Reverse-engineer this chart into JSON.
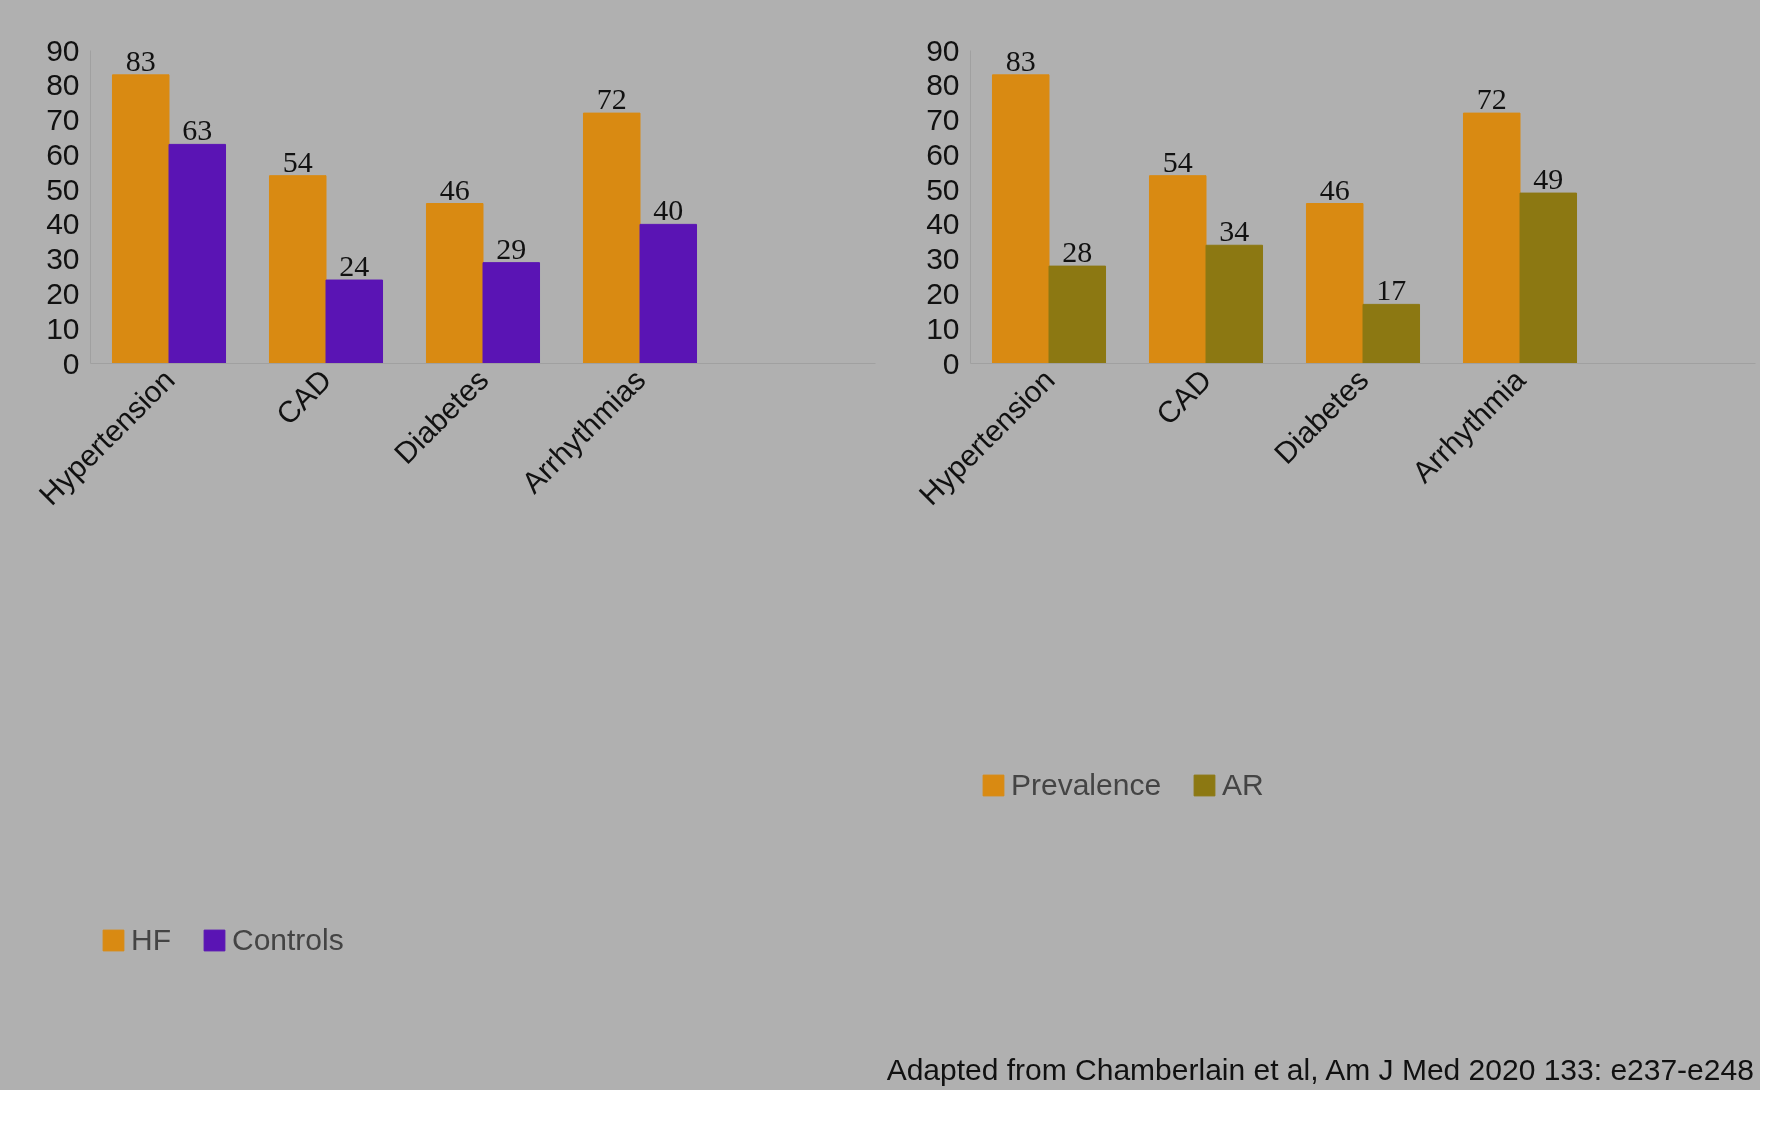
{
  "chart_data": [
    {
      "type": "bar",
      "categories": [
        "Hypertension",
        "CAD",
        "Diabetes",
        "Arrhythmias"
      ],
      "series": [
        {
          "name": "HF",
          "color": "#d98a12",
          "values": [
            83,
            54,
            46,
            72
          ]
        },
        {
          "name": "Controls",
          "color": "#5a14b4",
          "values": [
            63,
            24,
            29,
            40
          ]
        }
      ],
      "ylim": [
        0,
        90
      ],
      "yticks": [
        0,
        10,
        20,
        30,
        40,
        50,
        60,
        70,
        80,
        90
      ],
      "grid": false,
      "legend": "bottom",
      "data_labels": true
    },
    {
      "type": "bar",
      "categories": [
        "Hypertension",
        "CAD",
        "Diabetes",
        "Arrhythmia"
      ],
      "series": [
        {
          "name": "Prevalence",
          "color": "#d98a12",
          "values": [
            83,
            54,
            46,
            72
          ]
        },
        {
          "name": "AR",
          "color": "#8c7812",
          "values": [
            28,
            34,
            17,
            49
          ]
        }
      ],
      "ylim": [
        0,
        90
      ],
      "yticks": [
        0,
        10,
        20,
        30,
        40,
        50,
        60,
        70,
        80,
        90
      ],
      "grid": false,
      "legend": "bottom",
      "data_labels": true,
      "annotations": [
        "Adapted from Chamberlain et al, Am J Med 2020 133: e237-e248"
      ]
    }
  ]
}
